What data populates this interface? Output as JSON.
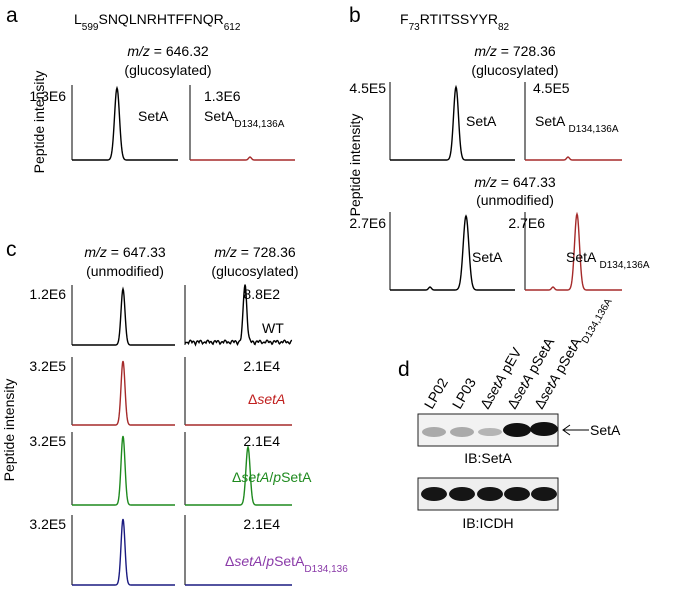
{
  "panel_a": {
    "letter": "a",
    "peptide": [
      {
        "t": "L"
      },
      {
        "t": "599",
        "s": "sub"
      },
      {
        "t": "SNQLNRHTFFNQR"
      },
      {
        "t": "612",
        "s": "sub"
      }
    ],
    "mz": [
      {
        "t": "m/z",
        "s": "i"
      },
      {
        "t": " = 646.32"
      }
    ],
    "modification": "(glucosylated)",
    "y_label": "Peptide intensity",
    "plots": [
      {
        "intensity": "1.3E6",
        "label": [
          {
            "t": "SetA"
          }
        ],
        "color": "#000000"
      },
      {
        "intensity": "1.3E6",
        "label": [
          {
            "t": "SetA"
          },
          {
            "t": "D134,136A",
            "s": "sub"
          }
        ],
        "color": "#a52a2a"
      }
    ]
  },
  "panel_b": {
    "letter": "b",
    "peptide": [
      {
        "t": "F"
      },
      {
        "t": "73",
        "s": "sub"
      },
      {
        "t": "RTITSSYYR"
      },
      {
        "t": "82",
        "s": "sub"
      }
    ],
    "y_label": "Peptide intensity",
    "rows": [
      {
        "mz": [
          {
            "t": "m/z",
            "s": "i"
          },
          {
            "t": " = 728.36"
          }
        ],
        "modification": "(glucosylated)",
        "plots": [
          {
            "intensity": "4.5E5",
            "label": [
              {
                "t": "SetA"
              }
            ],
            "color": "#000000"
          },
          {
            "intensity": "4.5E5",
            "label": [
              {
                "t": "SetA "
              },
              {
                "t": "D134,136A",
                "s": "sub"
              }
            ],
            "color": "#a52a2a"
          }
        ]
      },
      {
        "mz": [
          {
            "t": "m/z",
            "s": "i"
          },
          {
            "t": " = 647.33"
          }
        ],
        "modification": "(unmodified)",
        "plots": [
          {
            "intensity": "2.7E6",
            "label": [
              {
                "t": "SetA"
              }
            ],
            "color": "#000000"
          },
          {
            "intensity": "2.7E6",
            "label": [
              {
                "t": "SetA "
              },
              {
                "t": "D134,136A",
                "s": "sub"
              }
            ],
            "color": "#a52a2a"
          }
        ]
      }
    ]
  },
  "panel_c": {
    "letter": "c",
    "y_label": "Peptide intensity",
    "columns": [
      {
        "mz": [
          {
            "t": "m/z",
            "s": "i"
          },
          {
            "t": " = 647.33"
          }
        ],
        "modification": "(unmodified)"
      },
      {
        "mz": [
          {
            "t": "m/z",
            "s": "i"
          },
          {
            "t": " = 728.36"
          }
        ],
        "modification": "(glucosylated)"
      }
    ],
    "rows": [
      {
        "left": "1.2E6",
        "right": "8.8E2",
        "color": "#000000",
        "label_color": "#000000",
        "label": [
          {
            "t": "WT"
          }
        ]
      },
      {
        "left": "3.2E5",
        "right": "2.1E4",
        "color": "#a52a2a",
        "label_color": "#c0201f",
        "label": [
          {
            "t": "Δ"
          },
          {
            "t": "setA",
            "s": "i"
          }
        ]
      },
      {
        "left": "3.2E5",
        "right": "2.1E4",
        "color": "#1e8a1e",
        "label_color": "#1e8a1e",
        "label": [
          {
            "t": "Δ"
          },
          {
            "t": "setA",
            "s": "i"
          },
          {
            "t": "/"
          },
          {
            "t": "p",
            "s": "i"
          },
          {
            "t": "SetA"
          }
        ]
      },
      {
        "left": "3.2E5",
        "right": "2.1E4",
        "color": "#1a1a80",
        "label_color": "#8a3aa8",
        "label": [
          {
            "t": "Δ"
          },
          {
            "t": "setA",
            "s": "i"
          },
          {
            "t": "/"
          },
          {
            "t": "p",
            "s": "i"
          },
          {
            "t": "SetA"
          },
          {
            "t": "D134,136",
            "s": "sub"
          }
        ]
      }
    ]
  },
  "panel_d": {
    "letter": "d",
    "lanes": [
      [
        {
          "t": "LP02"
        }
      ],
      [
        {
          "t": "LP03"
        }
      ],
      [
        {
          "t": "Δ"
        },
        {
          "t": "setA",
          "s": "i"
        },
        {
          "t": " pEV"
        }
      ],
      [
        {
          "t": "Δ"
        },
        {
          "t": "setA",
          "s": "i"
        },
        {
          "t": " pSetA"
        }
      ],
      [
        {
          "t": "Δ"
        },
        {
          "t": "setA",
          "s": "i"
        },
        {
          "t": " pSetA"
        },
        {
          "t": "D134,136A",
          "s": "sub"
        }
      ]
    ],
    "band_label": "SetA",
    "blots": [
      "IB:SetA",
      "IB:ICDH"
    ]
  }
}
